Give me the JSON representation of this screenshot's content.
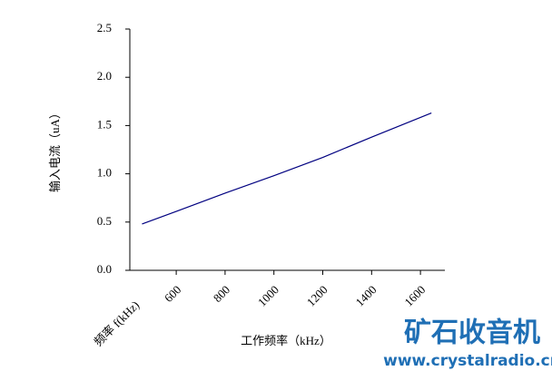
{
  "chart_data": {
    "type": "line",
    "ylabel": "输入电流（uA）",
    "xlabel": "工作频率（kHz）",
    "x_axis_note": "频率 f(kHz)",
    "watermark": "矿石收音机",
    "watermark_url": "www.crystalradio.cn",
    "xlim": [
      410,
      1700
    ],
    "xticks": [
      600,
      800,
      1000,
      1200,
      1400,
      1600
    ],
    "ylim": [
      0,
      2.5
    ],
    "yticks": [
      {
        "value": 0,
        "label": "0.0"
      },
      0.5,
      {
        "value": 1,
        "label": "1.0"
      },
      1.5,
      {
        "value": 2,
        "label": "2.0"
      },
      2.5
    ],
    "grid": false,
    "series": [
      {
        "name": "输入电流",
        "color": "#000080",
        "x": [
          460,
          600,
          800,
          1000,
          1200,
          1400,
          1645
        ],
        "values": [
          0.48,
          0.61,
          0.8,
          0.98,
          1.17,
          1.38,
          1.63
        ]
      }
    ]
  }
}
